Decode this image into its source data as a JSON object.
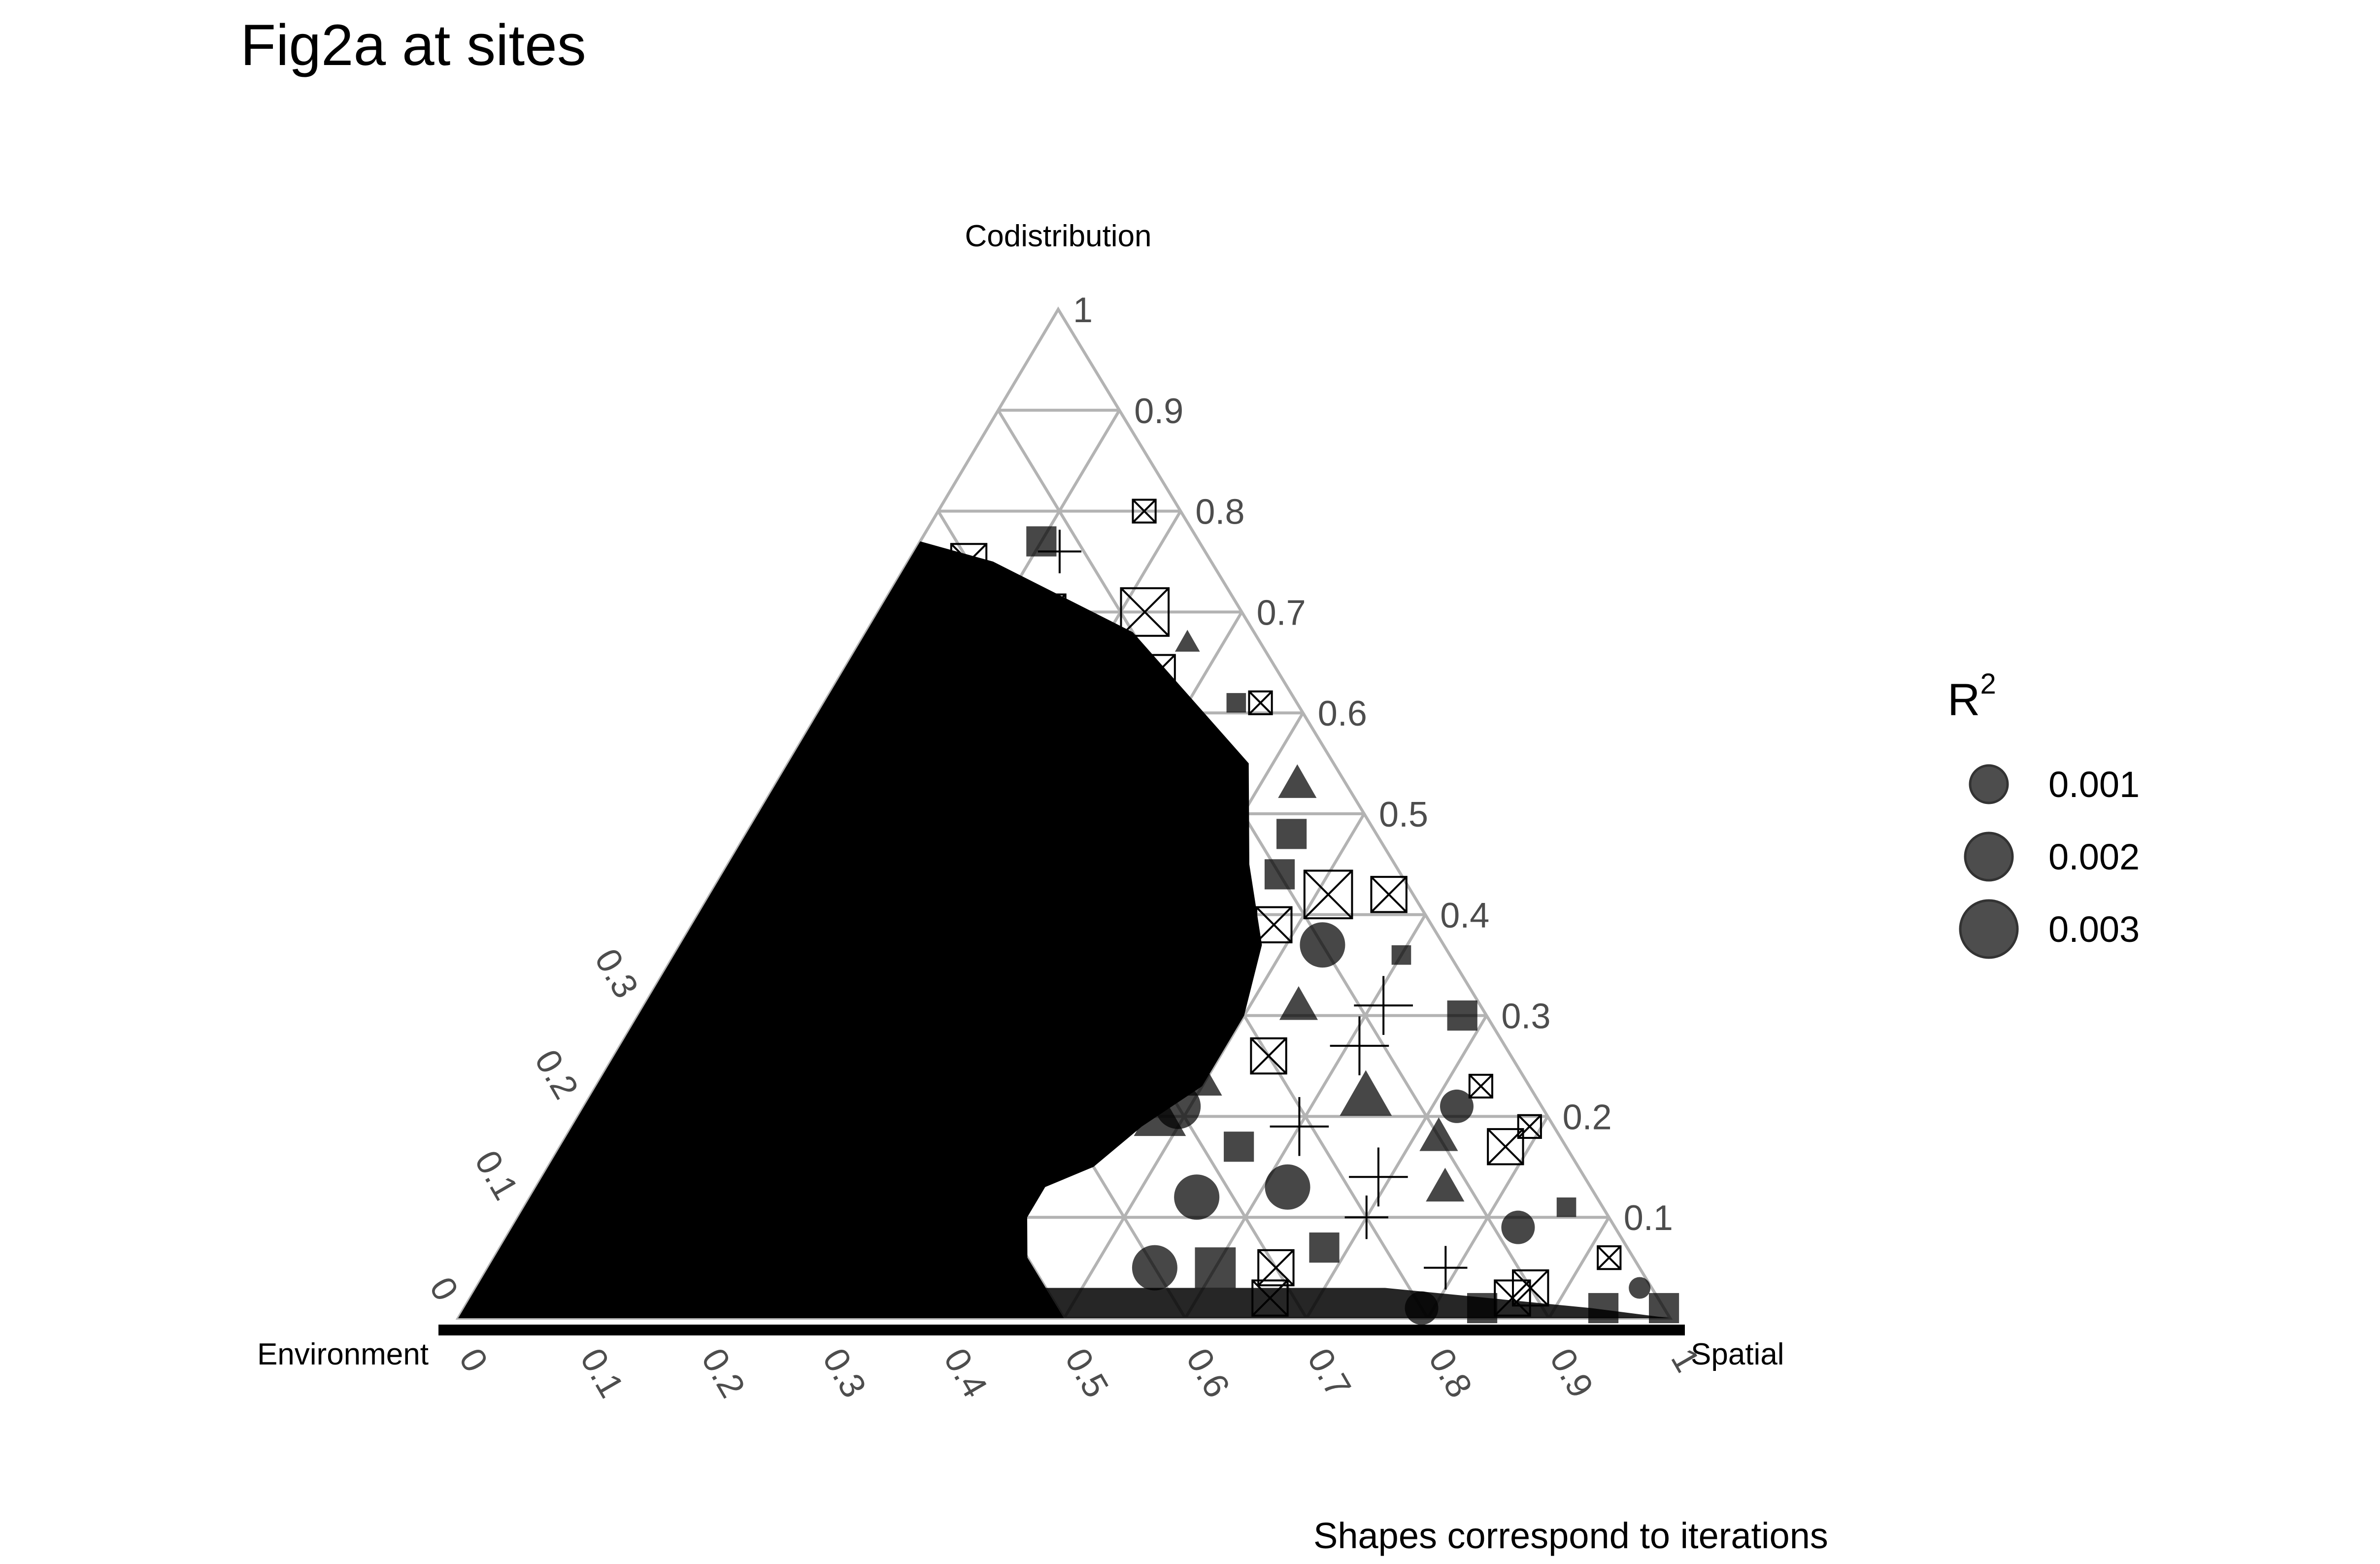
{
  "chart_data": {
    "type": "scatter",
    "subtype": "ternary",
    "title": "Fig2a at sites",
    "axes": {
      "top": "Codistribution",
      "left": "Environment",
      "right": "Spatial"
    },
    "ticks": [
      "0",
      "0.1",
      "0.2",
      "0.3",
      "0.4",
      "0.5",
      "0.6",
      "0.7",
      "0.8",
      "0.9",
      "1"
    ],
    "right_edge_ticks": [
      "0.1",
      "0.2",
      "0.3",
      "0.4",
      "0.5",
      "0.6",
      "0.7",
      "0.8",
      "0.9",
      "1"
    ],
    "grid": true,
    "legend": {
      "title": "R",
      "title_superscript": "2",
      "placement": "right",
      "items": [
        {
          "label": "0.001",
          "r2": 0.001
        },
        {
          "label": "0.002",
          "r2": 0.002
        },
        {
          "label": "0.003",
          "r2": 0.003
        }
      ]
    },
    "shapes": [
      "circle",
      "triangle",
      "square",
      "plus",
      "boxed-x"
    ],
    "caption": "Shapes correspond to iterations",
    "points": [
      {
        "env": 0.2,
        "spa": 0.05,
        "cod": 0.75,
        "shape": "boxed-x",
        "r2": 0.002
      },
      {
        "env": 0.13,
        "spa": 0.1,
        "cod": 0.77,
        "shape": "square",
        "r2": 0.002
      },
      {
        "env": 0.12,
        "spa": 0.12,
        "cod": 0.76,
        "shape": "plus",
        "r2": 0.002
      },
      {
        "env": 0.16,
        "spa": 0.14,
        "cod": 0.7,
        "shape": "boxed-x",
        "r2": 0.002
      },
      {
        "env": 0.08,
        "spa": 0.22,
        "cod": 0.7,
        "shape": "boxed-x",
        "r2": 0.003
      },
      {
        "env": 0.13,
        "spa": 0.21,
        "cod": 0.66,
        "shape": "triangle",
        "r2": 0.002
      },
      {
        "env": 0.06,
        "spa": 0.27,
        "cod": 0.67,
        "shape": "triangle",
        "r2": 0.001
      },
      {
        "env": 0.03,
        "spa": 0.17,
        "cod": 0.8,
        "shape": "boxed-x",
        "r2": 0.001
      },
      {
        "env": 0.1,
        "spa": 0.26,
        "cod": 0.64,
        "shape": "boxed-x",
        "r2": 0.002
      },
      {
        "env": 0.05,
        "spa": 0.34,
        "cod": 0.61,
        "shape": "square",
        "r2": 0.001
      },
      {
        "env": 0.03,
        "spa": 0.36,
        "cod": 0.61,
        "shape": "boxed-x",
        "r2": 0.001
      },
      {
        "env": 0.2,
        "spa": 0.25,
        "cod": 0.55,
        "shape": "boxed-x",
        "r2": 0.003
      },
      {
        "env": 0.1,
        "spa": 0.35,
        "cod": 0.55,
        "shape": "circle",
        "r2": 0.001
      },
      {
        "env": 0.04,
        "spa": 0.43,
        "cod": 0.53,
        "shape": "triangle",
        "r2": 0.002
      },
      {
        "env": 0.27,
        "spa": 0.21,
        "cod": 0.52,
        "shape": "triangle",
        "r2": 0.003
      },
      {
        "env": 0.22,
        "spa": 0.26,
        "cod": 0.52,
        "shape": "boxed-x",
        "r2": 0.002
      },
      {
        "env": 0.14,
        "spa": 0.36,
        "cod": 0.5,
        "shape": "boxed-x",
        "r2": 0.003
      },
      {
        "env": 0.07,
        "spa": 0.45,
        "cod": 0.48,
        "shape": "square",
        "r2": 0.002
      },
      {
        "env": 0.1,
        "spa": 0.46,
        "cod": 0.44,
        "shape": "square",
        "r2": 0.002
      },
      {
        "env": 0.17,
        "spa": 0.38,
        "cod": 0.45,
        "shape": "triangle",
        "r2": 0.003
      },
      {
        "env": 0.22,
        "spa": 0.33,
        "cod": 0.45,
        "shape": "circle",
        "r2": 0.003
      },
      {
        "env": 0.02,
        "spa": 0.56,
        "cod": 0.42,
        "shape": "boxed-x",
        "r2": 0.002
      },
      {
        "env": 0.07,
        "spa": 0.51,
        "cod": 0.42,
        "shape": "boxed-x",
        "r2": 0.003
      },
      {
        "env": 0.13,
        "spa": 0.48,
        "cod": 0.39,
        "shape": "boxed-x",
        "r2": 0.002
      },
      {
        "env": 0.2,
        "spa": 0.42,
        "cod": 0.38,
        "shape": "triangle",
        "r2": 0.002
      },
      {
        "env": 0.04,
        "spa": 0.6,
        "cod": 0.36,
        "shape": "square",
        "r2": 0.001
      },
      {
        "env": 0.1,
        "spa": 0.53,
        "cod": 0.37,
        "shape": "circle",
        "r2": 0.003
      },
      {
        "env": 0.25,
        "spa": 0.4,
        "cod": 0.35,
        "shape": "square",
        "r2": 0.003
      },
      {
        "env": 0.28,
        "spa": 0.38,
        "cod": 0.34,
        "shape": "boxed-x",
        "r2": 0.002
      },
      {
        "env": 0.08,
        "spa": 0.61,
        "cod": 0.31,
        "shape": "plus",
        "r2": 0.003
      },
      {
        "env": 0.15,
        "spa": 0.54,
        "cod": 0.31,
        "shape": "triangle",
        "r2": 0.002
      },
      {
        "env": 0.22,
        "spa": 0.47,
        "cod": 0.31,
        "shape": "plus",
        "r2": 0.003
      },
      {
        "env": 0.02,
        "spa": 0.68,
        "cod": 0.3,
        "shape": "square",
        "r2": 0.002
      },
      {
        "env": 0.3,
        "spa": 0.41,
        "cod": 0.29,
        "shape": "circle",
        "r2": 0.002
      },
      {
        "env": 0.12,
        "spa": 0.61,
        "cod": 0.27,
        "shape": "plus",
        "r2": 0.003
      },
      {
        "env": 0.2,
        "spa": 0.54,
        "cod": 0.26,
        "shape": "boxed-x",
        "r2": 0.002
      },
      {
        "env": 0.27,
        "spa": 0.49,
        "cod": 0.24,
        "shape": "triangle",
        "r2": 0.003
      },
      {
        "env": 0.04,
        "spa": 0.73,
        "cod": 0.23,
        "shape": "boxed-x",
        "r2": 0.001
      },
      {
        "env": 0.14,
        "spa": 0.64,
        "cod": 0.22,
        "shape": "triangle",
        "r2": 0.003
      },
      {
        "env": 0.3,
        "spa": 0.49,
        "cod": 0.21,
        "shape": "circle",
        "r2": 0.003
      },
      {
        "env": 0.07,
        "spa": 0.72,
        "cod": 0.21,
        "shape": "circle",
        "r2": 0.002
      },
      {
        "env": 0.21,
        "spa": 0.6,
        "cod": 0.19,
        "shape": "plus",
        "r2": 0.003
      },
      {
        "env": 0.1,
        "spa": 0.72,
        "cod": 0.18,
        "shape": "triangle",
        "r2": 0.002
      },
      {
        "env": 0.02,
        "spa": 0.79,
        "cod": 0.19,
        "shape": "boxed-x",
        "r2": 0.001
      },
      {
        "env": 0.27,
        "spa": 0.56,
        "cod": 0.17,
        "shape": "square",
        "r2": 0.002
      },
      {
        "env": 0.05,
        "spa": 0.78,
        "cod": 0.17,
        "shape": "boxed-x",
        "r2": 0.002
      },
      {
        "env": 0.17,
        "spa": 0.69,
        "cod": 0.14,
        "shape": "plus",
        "r2": 0.003
      },
      {
        "env": 0.25,
        "spa": 0.62,
        "cod": 0.13,
        "shape": "circle",
        "r2": 0.003
      },
      {
        "env": 0.12,
        "spa": 0.75,
        "cod": 0.13,
        "shape": "triangle",
        "r2": 0.002
      },
      {
        "env": 0.03,
        "spa": 0.86,
        "cod": 0.11,
        "shape": "square",
        "r2": 0.001
      },
      {
        "env": 0.2,
        "spa": 0.7,
        "cod": 0.1,
        "shape": "plus",
        "r2": 0.002
      },
      {
        "env": 0.08,
        "spa": 0.83,
        "cod": 0.09,
        "shape": "circle",
        "r2": 0.002
      },
      {
        "env": 0.02,
        "spa": 0.92,
        "cod": 0.06,
        "shape": "boxed-x",
        "r2": 0.001
      },
      {
        "env": 0.25,
        "spa": 0.68,
        "cod": 0.07,
        "shape": "square",
        "r2": 0.002
      },
      {
        "env": 0.3,
        "spa": 0.65,
        "cod": 0.05,
        "shape": "boxed-x",
        "r2": 0.002
      },
      {
        "env": 0.16,
        "spa": 0.79,
        "cod": 0.05,
        "shape": "plus",
        "r2": 0.002
      },
      {
        "env": 0.01,
        "spa": 0.96,
        "cod": 0.03,
        "shape": "circle",
        "r2": 0.001
      },
      {
        "env": 0.1,
        "spa": 0.87,
        "cod": 0.03,
        "shape": "boxed-x",
        "r2": 0.002
      },
      {
        "env": 0.12,
        "spa": 0.86,
        "cod": 0.02,
        "shape": "boxed-x",
        "r2": 0.002
      },
      {
        "env": 0.05,
        "spa": 0.94,
        "cod": 0.01,
        "shape": "square",
        "r2": 0.002
      },
      {
        "env": 0.0,
        "spa": 0.99,
        "cod": 0.01,
        "shape": "square",
        "r2": 0.002
      },
      {
        "env": 0.2,
        "spa": 0.79,
        "cod": 0.01,
        "shape": "circle",
        "r2": 0.002
      },
      {
        "env": 0.15,
        "spa": 0.84,
        "cod": 0.01,
        "shape": "square",
        "r2": 0.002
      },
      {
        "env": 0.32,
        "spa": 0.66,
        "cod": 0.02,
        "shape": "boxed-x",
        "r2": 0.002
      },
      {
        "env": 0.35,
        "spa": 0.6,
        "cod": 0.05,
        "shape": "square",
        "r2": 0.003
      },
      {
        "env": 0.4,
        "spa": 0.55,
        "cod": 0.05,
        "shape": "circle",
        "r2": 0.003
      },
      {
        "env": 0.33,
        "spa": 0.55,
        "cod": 0.12,
        "shape": "circle",
        "r2": 0.003
      },
      {
        "env": 0.32,
        "spa": 0.48,
        "cod": 0.2,
        "shape": "triangle",
        "r2": 0.003
      },
      {
        "env": 0.34,
        "spa": 0.4,
        "cod": 0.26,
        "shape": "boxed-x",
        "r2": 0.003
      },
      {
        "env": 0.3,
        "spa": 0.35,
        "cod": 0.35,
        "shape": "boxed-x",
        "r2": 0.003
      },
      {
        "env": 0.3,
        "spa": 0.3,
        "cod": 0.4,
        "shape": "triangle",
        "r2": 0.003
      },
      {
        "env": 0.3,
        "spa": 0.25,
        "cod": 0.45,
        "shape": "circle",
        "r2": 0.003
      }
    ]
  }
}
